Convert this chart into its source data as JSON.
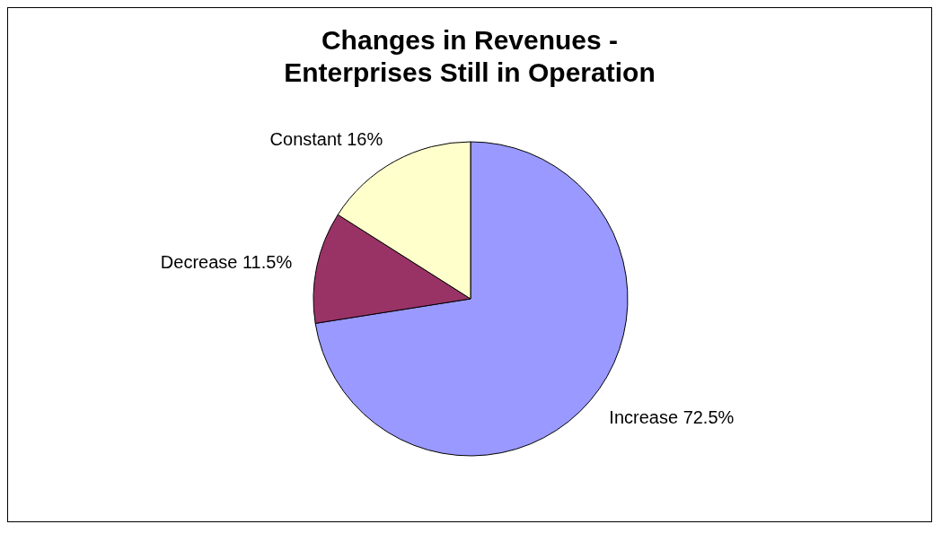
{
  "chart_data": {
    "type": "pie",
    "title": "Changes in Revenues -\nEnterprises Still in Operation",
    "categories": [
      "Increase",
      "Decrease",
      "Constant"
    ],
    "values": [
      72.5,
      11.5,
      16
    ],
    "colors": [
      "#9999ff",
      "#993366",
      "#ffffcc"
    ],
    "value_labels": [
      "72.5%",
      "11.5%",
      "16%"
    ],
    "legend": false
  }
}
